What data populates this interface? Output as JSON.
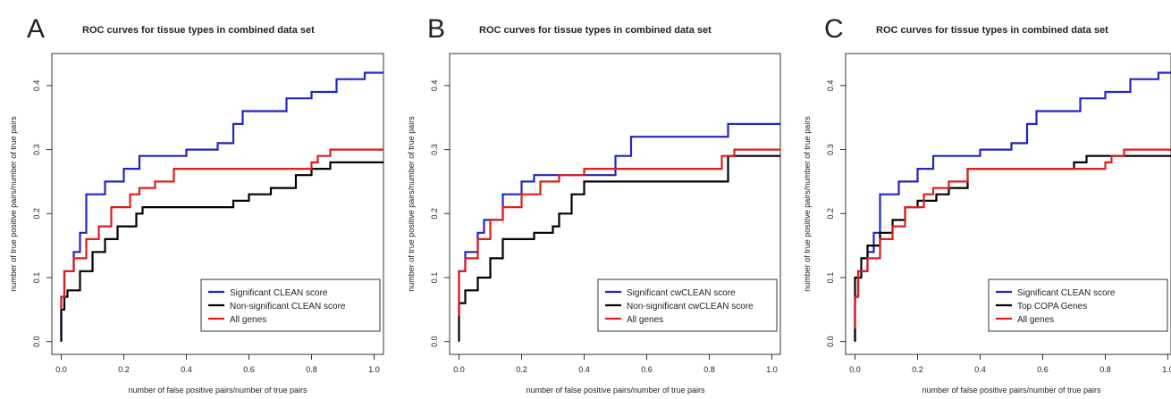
{
  "chart_data": [
    {
      "panel_letter": "A",
      "type": "line",
      "title": "ROC curves for tissue types in combined data set",
      "xlabel": "number of false positive pairs/number of true pairs",
      "ylabel": "number of true positive pairs/number of true pairs",
      "xlim": [
        -0.03,
        1.03
      ],
      "ylim": [
        -0.02,
        0.45
      ],
      "xticks": [
        0.0,
        0.2,
        0.4,
        0.6,
        0.8,
        1.0
      ],
      "xtick_labels": [
        "0.0",
        "0.2",
        "0.4",
        "0.6",
        "0.8",
        "1.0"
      ],
      "yticks": [
        0.0,
        0.1,
        0.2,
        0.3,
        0.4
      ],
      "ytick_labels": [
        "0.0",
        "0.1",
        "0.2",
        "0.3",
        "0.4"
      ],
      "grid": false,
      "legend_position": "bottom-right",
      "series": [
        {
          "name": "Significant CLEAN score",
          "color": "#2323c8",
          "x": [
            0,
            0,
            0.01,
            0.01,
            0.04,
            0.04,
            0.06,
            0.06,
            0.08,
            0.08,
            0.14,
            0.14,
            0.2,
            0.2,
            0.25,
            0.25,
            0.4,
            0.4,
            0.5,
            0.5,
            0.55,
            0.55,
            0.58,
            0.58,
            0.68,
            0.68,
            0.72,
            0.72,
            0.8,
            0.8,
            0.88,
            0.88,
            0.97,
            0.97,
            1.03
          ],
          "y": [
            0,
            0.07,
            0.07,
            0.11,
            0.11,
            0.14,
            0.14,
            0.17,
            0.17,
            0.23,
            0.23,
            0.25,
            0.25,
            0.27,
            0.27,
            0.29,
            0.29,
            0.3,
            0.3,
            0.31,
            0.31,
            0.34,
            0.34,
            0.36,
            0.36,
            0.36,
            0.36,
            0.38,
            0.38,
            0.39,
            0.39,
            0.41,
            0.41,
            0.42,
            0.42
          ]
        },
        {
          "name": "Non-significant CLEAN score",
          "color": "#000000",
          "x": [
            0,
            0,
            0.01,
            0.01,
            0.02,
            0.02,
            0.06,
            0.06,
            0.1,
            0.1,
            0.14,
            0.14,
            0.18,
            0.18,
            0.24,
            0.24,
            0.26,
            0.26,
            0.55,
            0.55,
            0.6,
            0.6,
            0.67,
            0.67,
            0.75,
            0.75,
            0.8,
            0.8,
            0.86,
            0.86,
            1.03
          ],
          "y": [
            0,
            0.05,
            0.05,
            0.07,
            0.07,
            0.08,
            0.08,
            0.11,
            0.11,
            0.14,
            0.14,
            0.16,
            0.16,
            0.18,
            0.18,
            0.2,
            0.2,
            0.21,
            0.21,
            0.22,
            0.22,
            0.23,
            0.23,
            0.24,
            0.24,
            0.26,
            0.26,
            0.27,
            0.27,
            0.28,
            0.28
          ]
        },
        {
          "name": "All genes",
          "color": "#e01c1c",
          "x": [
            0,
            0,
            0.01,
            0.01,
            0.04,
            0.04,
            0.08,
            0.08,
            0.12,
            0.12,
            0.16,
            0.16,
            0.22,
            0.22,
            0.25,
            0.25,
            0.3,
            0.3,
            0.36,
            0.36,
            0.8,
            0.8,
            0.82,
            0.82,
            0.86,
            0.86,
            1.03
          ],
          "y": [
            0.05,
            0.07,
            0.07,
            0.11,
            0.11,
            0.13,
            0.13,
            0.16,
            0.16,
            0.18,
            0.18,
            0.21,
            0.21,
            0.23,
            0.23,
            0.24,
            0.24,
            0.25,
            0.25,
            0.27,
            0.27,
            0.28,
            0.28,
            0.29,
            0.29,
            0.3,
            0.3
          ]
        }
      ]
    },
    {
      "panel_letter": "B",
      "type": "line",
      "title": "ROC curves for tissue types in combined data set",
      "xlabel": "number of false positive pairs/number of true pairs",
      "ylabel": "number of true positive pairs/number of true pairs",
      "xlim": [
        -0.03,
        1.03
      ],
      "ylim": [
        -0.02,
        0.45
      ],
      "xticks": [
        0.0,
        0.2,
        0.4,
        0.6,
        0.8,
        1.0
      ],
      "xtick_labels": [
        "0.0",
        "0.2",
        "0.4",
        "0.6",
        "0.8",
        "1.0"
      ],
      "yticks": [
        0.0,
        0.1,
        0.2,
        0.3,
        0.4
      ],
      "ytick_labels": [
        "0.0",
        "0.1",
        "0.2",
        "0.3",
        "0.4"
      ],
      "grid": false,
      "legend_position": "bottom-right",
      "series": [
        {
          "name": "Significant cwCLEAN score",
          "color": "#2323c8",
          "x": [
            0,
            0,
            0.02,
            0.02,
            0.06,
            0.06,
            0.08,
            0.08,
            0.14,
            0.14,
            0.2,
            0.2,
            0.24,
            0.24,
            0.5,
            0.5,
            0.55,
            0.55,
            0.86,
            0.86,
            1.03
          ],
          "y": [
            0.04,
            0.11,
            0.11,
            0.14,
            0.14,
            0.17,
            0.17,
            0.19,
            0.19,
            0.23,
            0.23,
            0.25,
            0.25,
            0.26,
            0.26,
            0.29,
            0.29,
            0.32,
            0.32,
            0.34,
            0.34
          ]
        },
        {
          "name": "Non-significant cwCLEAN score",
          "color": "#000000",
          "x": [
            0,
            0,
            0.02,
            0.02,
            0.06,
            0.06,
            0.1,
            0.1,
            0.14,
            0.14,
            0.24,
            0.24,
            0.3,
            0.3,
            0.32,
            0.32,
            0.36,
            0.36,
            0.4,
            0.4,
            0.86,
            0.86,
            1.03
          ],
          "y": [
            0,
            0.06,
            0.06,
            0.08,
            0.08,
            0.1,
            0.1,
            0.13,
            0.13,
            0.16,
            0.16,
            0.17,
            0.17,
            0.18,
            0.18,
            0.2,
            0.2,
            0.23,
            0.23,
            0.25,
            0.25,
            0.29,
            0.29
          ]
        },
        {
          "name": "All genes",
          "color": "#e01c1c",
          "x": [
            0,
            0,
            0.02,
            0.02,
            0.06,
            0.06,
            0.1,
            0.1,
            0.14,
            0.14,
            0.2,
            0.2,
            0.26,
            0.26,
            0.32,
            0.32,
            0.4,
            0.4,
            0.84,
            0.84,
            0.88,
            0.88,
            1.03
          ],
          "y": [
            0.04,
            0.11,
            0.11,
            0.13,
            0.13,
            0.16,
            0.16,
            0.19,
            0.19,
            0.21,
            0.21,
            0.23,
            0.23,
            0.25,
            0.25,
            0.26,
            0.26,
            0.27,
            0.27,
            0.29,
            0.29,
            0.3,
            0.3
          ]
        }
      ]
    },
    {
      "panel_letter": "C",
      "type": "line",
      "title": "ROC curves for tissue types in combined data set",
      "xlabel": "number of false positive pairs/number of true pairs",
      "ylabel": "number of true positive pairs/number of true pairs",
      "xlim": [
        -0.03,
        1.03
      ],
      "ylim": [
        -0.02,
        0.45
      ],
      "xticks": [
        0.0,
        0.2,
        0.4,
        0.6,
        0.8,
        1.0
      ],
      "xtick_labels": [
        "0.0",
        "0.2",
        "0.4",
        "0.6",
        "0.8",
        "1.0"
      ],
      "yticks": [
        0.0,
        0.1,
        0.2,
        0.3,
        0.4
      ],
      "ytick_labels": [
        "0.0",
        "0.1",
        "0.2",
        "0.3",
        "0.4"
      ],
      "grid": false,
      "legend_position": "bottom-right",
      "series": [
        {
          "name": "Significant CLEAN score",
          "color": "#2323c8",
          "x": [
            0,
            0,
            0.01,
            0.01,
            0.04,
            0.04,
            0.06,
            0.06,
            0.08,
            0.08,
            0.14,
            0.14,
            0.2,
            0.2,
            0.25,
            0.25,
            0.4,
            0.4,
            0.5,
            0.5,
            0.55,
            0.55,
            0.58,
            0.58,
            0.68,
            0.68,
            0.72,
            0.72,
            0.8,
            0.8,
            0.88,
            0.88,
            0.97,
            0.97,
            1.03
          ],
          "y": [
            0,
            0.07,
            0.07,
            0.11,
            0.11,
            0.14,
            0.14,
            0.17,
            0.17,
            0.23,
            0.23,
            0.25,
            0.25,
            0.27,
            0.27,
            0.29,
            0.29,
            0.3,
            0.3,
            0.31,
            0.31,
            0.34,
            0.34,
            0.36,
            0.36,
            0.36,
            0.36,
            0.38,
            0.38,
            0.39,
            0.39,
            0.41,
            0.41,
            0.42,
            0.42
          ]
        },
        {
          "name": "Top COPA Genes",
          "color": "#000000",
          "x": [
            0,
            0,
            0.02,
            0.02,
            0.04,
            0.04,
            0.08,
            0.08,
            0.12,
            0.12,
            0.16,
            0.16,
            0.2,
            0.2,
            0.26,
            0.26,
            0.3,
            0.3,
            0.36,
            0.36,
            0.7,
            0.7,
            0.74,
            0.74,
            1.03
          ],
          "y": [
            0,
            0.1,
            0.1,
            0.13,
            0.13,
            0.15,
            0.15,
            0.17,
            0.17,
            0.19,
            0.19,
            0.21,
            0.21,
            0.22,
            0.22,
            0.23,
            0.23,
            0.24,
            0.24,
            0.27,
            0.27,
            0.28,
            0.28,
            0.29,
            0.29
          ]
        },
        {
          "name": "All genes",
          "color": "#e01c1c",
          "x": [
            0,
            0,
            0.01,
            0.01,
            0.04,
            0.04,
            0.08,
            0.08,
            0.12,
            0.12,
            0.16,
            0.16,
            0.22,
            0.22,
            0.25,
            0.25,
            0.3,
            0.3,
            0.36,
            0.36,
            0.8,
            0.8,
            0.82,
            0.82,
            0.86,
            0.86,
            1.03
          ],
          "y": [
            0.02,
            0.07,
            0.07,
            0.11,
            0.11,
            0.13,
            0.13,
            0.16,
            0.16,
            0.18,
            0.18,
            0.21,
            0.21,
            0.23,
            0.23,
            0.24,
            0.24,
            0.25,
            0.25,
            0.27,
            0.27,
            0.28,
            0.28,
            0.29,
            0.29,
            0.3,
            0.3
          ]
        }
      ]
    }
  ]
}
